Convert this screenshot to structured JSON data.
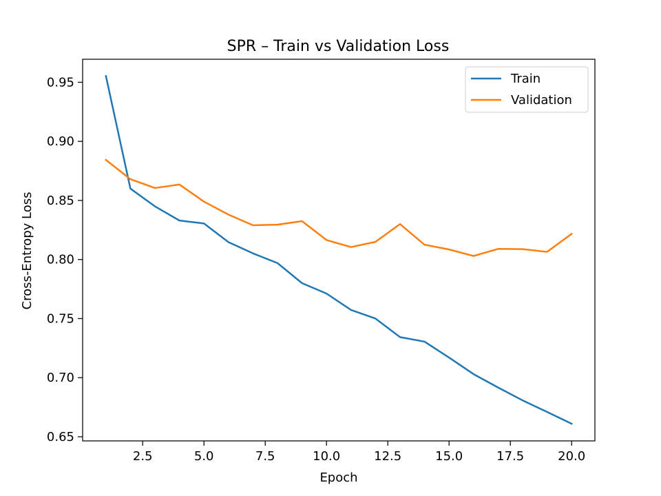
{
  "chart_data": {
    "type": "line",
    "title": "SPR – Train vs Validation Loss",
    "xlabel": "Epoch",
    "ylabel": "Cross-Entropy Loss",
    "xlim": [
      0.05,
      20.95
    ],
    "ylim": [
      0.6465,
      0.9695
    ],
    "x_ticks": [
      2.5,
      5.0,
      7.5,
      10.0,
      12.5,
      15.0,
      17.5,
      20.0
    ],
    "x_tick_labels": [
      "2.5",
      "5.0",
      "7.5",
      "10.0",
      "12.5",
      "15.0",
      "17.5",
      "20.0"
    ],
    "y_ticks": [
      0.65,
      0.7,
      0.75,
      0.8,
      0.85,
      0.9,
      0.95
    ],
    "y_tick_labels": [
      "0.65",
      "0.70",
      "0.75",
      "0.80",
      "0.85",
      "0.90",
      "0.95"
    ],
    "grid": false,
    "legend_position": "top-right",
    "x": [
      1,
      2,
      3,
      4,
      5,
      6,
      7,
      8,
      9,
      10,
      11,
      12,
      13,
      14,
      15,
      16,
      17,
      18,
      19,
      20
    ],
    "series": [
      {
        "name": "Train",
        "color": "#1f77b4",
        "values": [
          0.9553,
          0.86,
          0.845,
          0.833,
          0.8305,
          0.8147,
          0.8052,
          0.797,
          0.78,
          0.7712,
          0.7573,
          0.75,
          0.7343,
          0.7305,
          0.717,
          0.703,
          0.6917,
          0.6808,
          0.671,
          0.661
        ]
      },
      {
        "name": "Validation",
        "color": "#ff7f0e",
        "values": [
          0.8843,
          0.868,
          0.8605,
          0.8635,
          0.849,
          0.838,
          0.829,
          0.8295,
          0.8325,
          0.8165,
          0.8105,
          0.815,
          0.83,
          0.8125,
          0.8085,
          0.803,
          0.809,
          0.8088,
          0.8065,
          0.8217
        ]
      }
    ]
  }
}
